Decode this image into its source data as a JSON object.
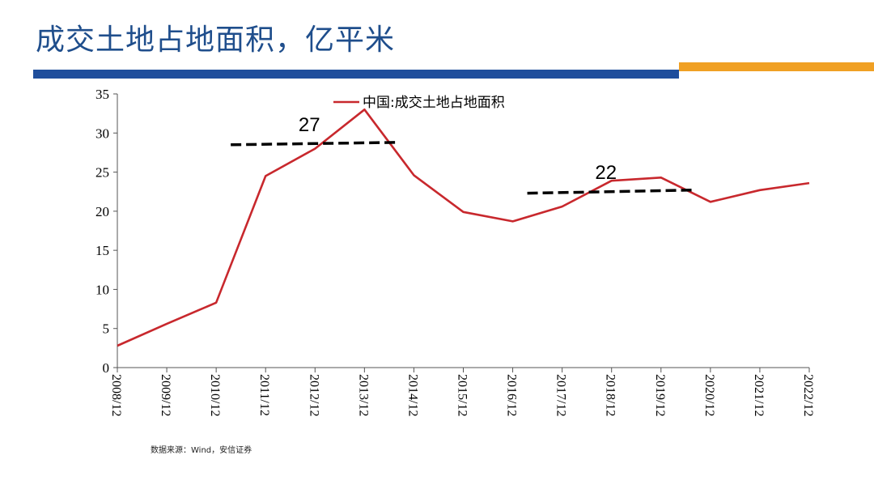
{
  "slide": {
    "title": "成交土地占地面积，亿平米",
    "source": "数据来源：Wind，安信证券"
  },
  "colors": {
    "title": "#1f4e8c",
    "bar_blue": "#1f4e9c",
    "bar_orange": "#f0a024",
    "line": "#c8282d",
    "dashed": "#000000"
  },
  "chart_data": {
    "type": "line",
    "title": "",
    "xlabel": "",
    "ylabel": "",
    "ylim": [
      0,
      35
    ],
    "yticks": [
      0,
      5,
      10,
      15,
      20,
      25,
      30,
      35
    ],
    "categories": [
      "2008/12",
      "2009/12",
      "2010/12",
      "2011/12",
      "2012/12",
      "2013/12",
      "2014/12",
      "2015/12",
      "2016/12",
      "2017/12",
      "2018/12",
      "2019/12",
      "2020/12",
      "2021/12",
      "2022/12"
    ],
    "series": [
      {
        "name": "中国:成交土地占地面积",
        "values": [
          2.8,
          5.6,
          8.3,
          24.5,
          28.0,
          33.0,
          24.6,
          19.9,
          18.7,
          20.6,
          23.9,
          24.3,
          21.2,
          22.7,
          23.6
        ]
      }
    ],
    "legend_position": "top-center",
    "grid": false,
    "reference_lines": [
      {
        "label": "27",
        "x_start": "2010/12",
        "x_end": "2014/12",
        "y_start": 28.5,
        "y_end": 28.8
      },
      {
        "label": "22",
        "x_start": "2016/12",
        "x_end": "2020/12",
        "y_start": 22.3,
        "y_end": 22.7
      }
    ]
  }
}
